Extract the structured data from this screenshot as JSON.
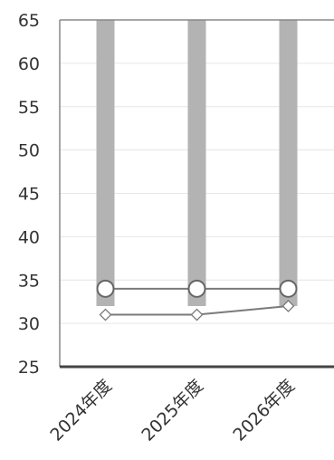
{
  "chart_data": {
    "type": "bar",
    "title": "",
    "xlabel": "",
    "ylabel": "",
    "categories": [
      "2024年度",
      "2025年度",
      "2026年度"
    ],
    "y_ticks": [
      "25",
      "30",
      "35",
      "40",
      "45",
      "50",
      "55",
      "60",
      "65"
    ],
    "ylim": [
      25,
      65
    ],
    "grid": true,
    "legend": "none",
    "series": [
      {
        "type": "bar",
        "range": true,
        "low": [
          32,
          32,
          32
        ],
        "high": [
          65,
          65,
          65
        ]
      },
      {
        "type": "line",
        "marker": "circle",
        "values": [
          34,
          34,
          34
        ]
      },
      {
        "type": "line",
        "marker": "diamond",
        "values": [
          31,
          31,
          32
        ]
      }
    ],
    "colors": {
      "bar": "#b3b3b3",
      "line": "#7a7a7a",
      "axis": "#444444",
      "grid": "#e6e6e6",
      "text": "#333333"
    }
  }
}
